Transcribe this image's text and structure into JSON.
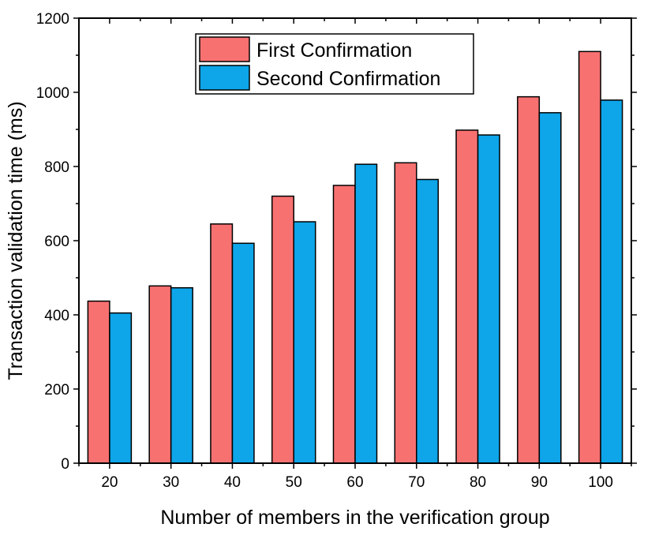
{
  "chart_data": {
    "type": "bar",
    "xlabel": "Number of members in the verification group",
    "ylabel": "Transaction validation time (ms)",
    "categories": [
      "20",
      "30",
      "40",
      "50",
      "60",
      "70",
      "80",
      "90",
      "100"
    ],
    "ylim": [
      0,
      1200
    ],
    "yticks": [
      0,
      200,
      400,
      600,
      800,
      1000,
      1200
    ],
    "legend_position": "top-center",
    "grid": false,
    "series": [
      {
        "name": "First Confirmation",
        "color": "#f87171",
        "values": [
          437,
          478,
          645,
          720,
          749,
          810,
          898,
          988,
          1110
        ]
      },
      {
        "name": "Second Confirmation",
        "color": "#0ea5e9",
        "values": [
          405,
          473,
          593,
          651,
          806,
          765,
          885,
          945,
          979
        ]
      }
    ]
  }
}
